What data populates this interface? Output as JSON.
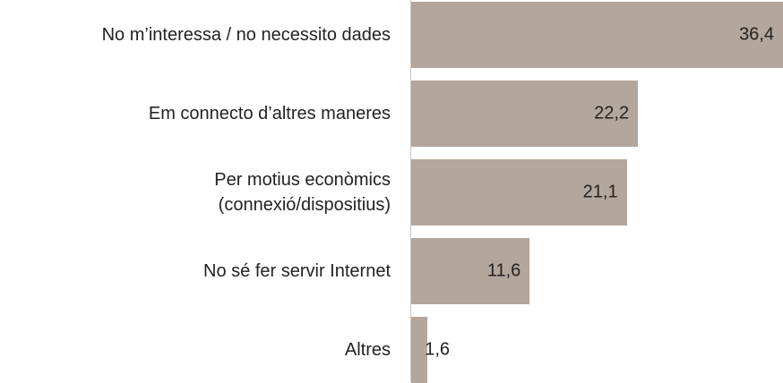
{
  "chart_data": {
    "type": "bar",
    "orientation": "horizontal",
    "categories": [
      "No m’interessa / no necessito dades",
      "Em connecto d’altres maneres",
      "Per motius econòmics\n(connexió/dispositius)",
      "No sé fer servir Internet",
      "Altres"
    ],
    "values": [
      36.4,
      22.2,
      21.1,
      11.6,
      1.6
    ],
    "value_labels": [
      "36,4",
      "22,2",
      "21,1",
      "11,6",
      "1,6"
    ],
    "color": "#b3a69c"
  }
}
